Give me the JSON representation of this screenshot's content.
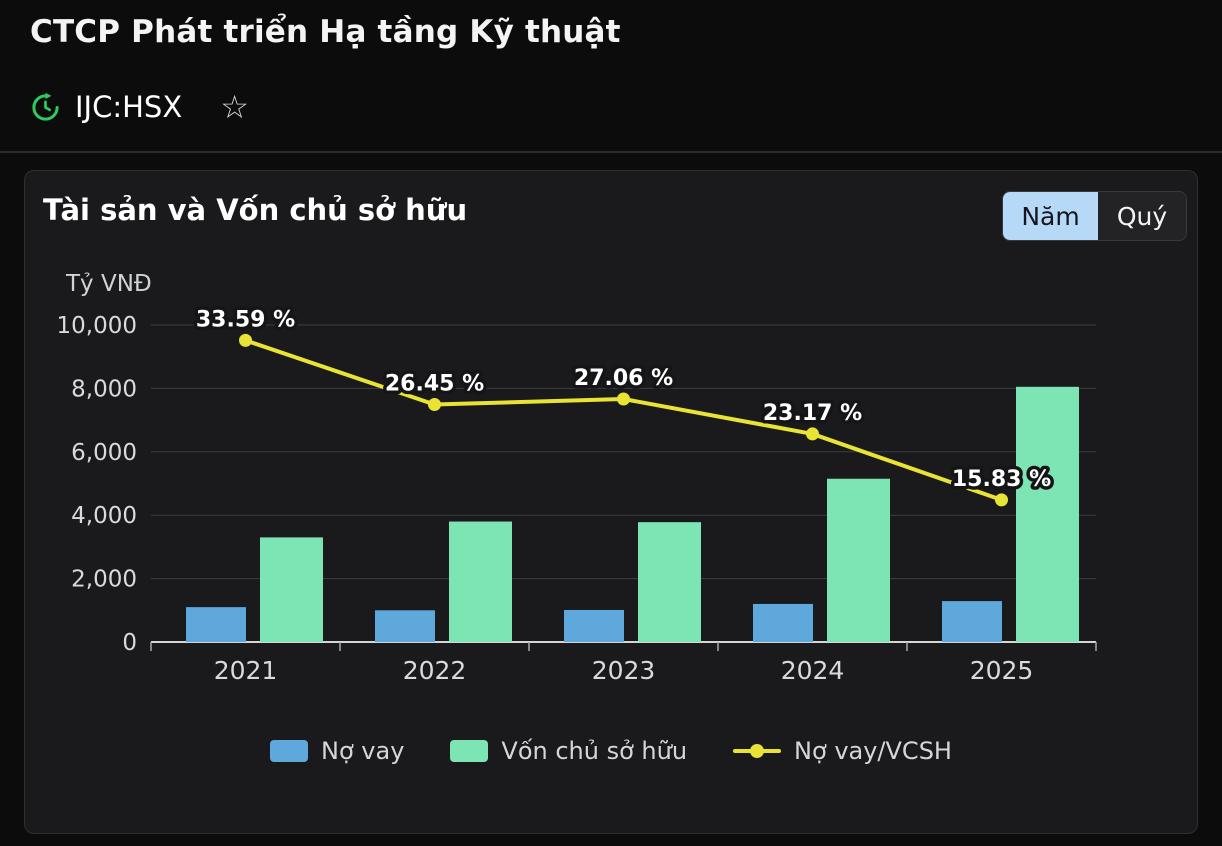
{
  "header": {
    "title": "CTCP Phát triển Hạ tầng Kỹ thuật",
    "ticker": "IJC:HSX"
  },
  "panel": {
    "title": "Tài sản và Vốn chủ sở hữu",
    "unit": "Tỷ VNĐ",
    "toggle": {
      "year": "Năm",
      "quarter": "Quý",
      "selected": "Năm"
    }
  },
  "colors": {
    "debt_bar": "#5fa8dc",
    "equity_bar": "#7de4b4",
    "ratio_line": "#e8e335",
    "toggle_selected_bg": "#b7d9f8",
    "status_icon": "#2ecc5e"
  },
  "chart_data": {
    "type": "bar",
    "title": "Tài sản và Vốn chủ sở hữu",
    "ylabel": "Tỷ VNĐ",
    "categories": [
      "2021",
      "2022",
      "2023",
      "2024",
      "2025"
    ],
    "series": [
      {
        "name": "Nợ vay",
        "kind": "bar",
        "color": "#5fa8dc",
        "values": [
          1100,
          1000,
          1010,
          1200,
          1290
        ]
      },
      {
        "name": "Vốn chủ sở hữu",
        "kind": "bar",
        "color": "#7de4b4",
        "values": [
          3300,
          3800,
          3780,
          5150,
          8050
        ]
      },
      {
        "name": "Nợ vay/VCSH",
        "kind": "line",
        "color": "#e8e335",
        "values": [
          33.59,
          26.45,
          27.06,
          23.17,
          15.83
        ],
        "labels": [
          "33.59 %",
          "26.45 %",
          "27.06 %",
          "23.17 %",
          "15.83 %"
        ],
        "axis_max": 35.3
      }
    ],
    "y_ticks": [
      "10,000",
      "8,000",
      "6,000",
      "4,000",
      "2,000",
      "0"
    ],
    "ylim": [
      0,
      10000
    ],
    "grid": true,
    "legend_position": "bottom"
  }
}
